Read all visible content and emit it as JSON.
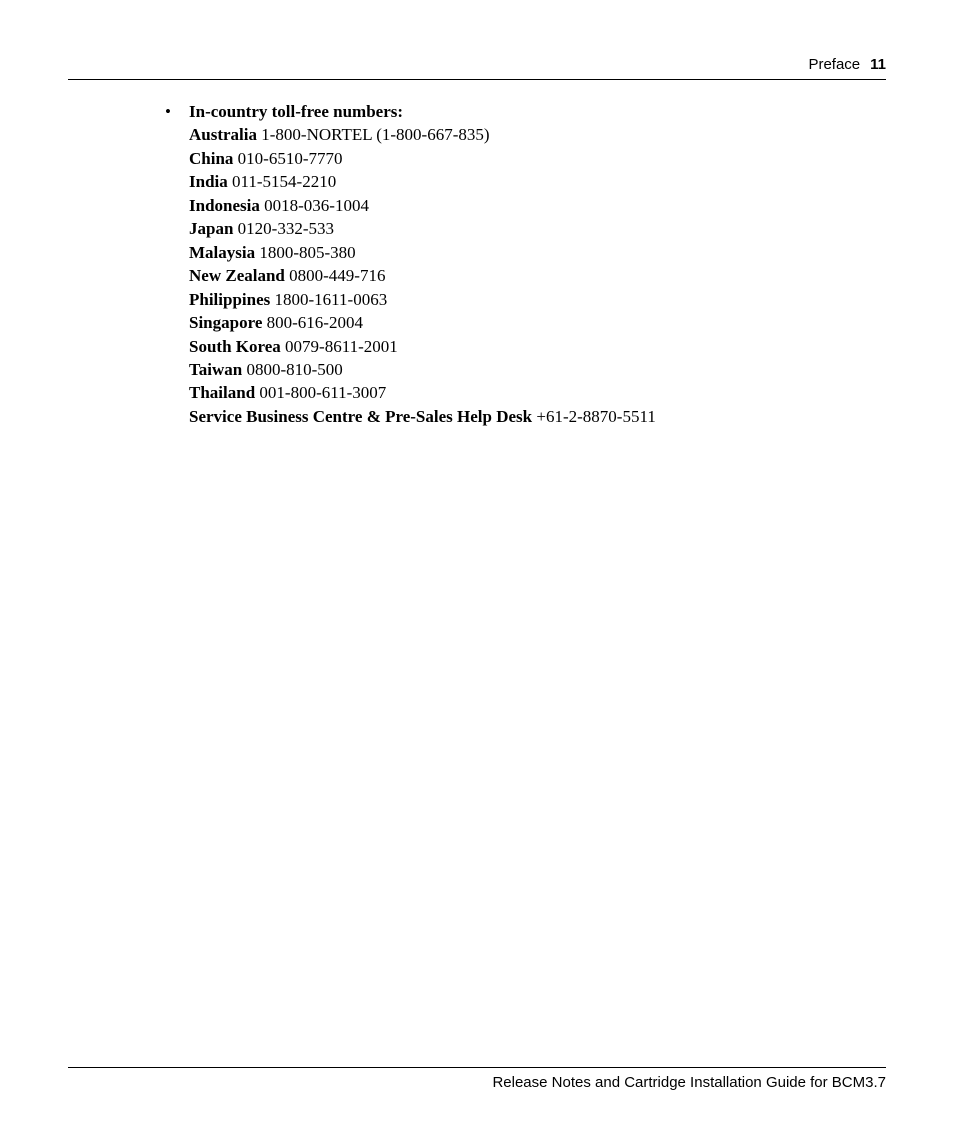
{
  "header": {
    "section_label": "Preface",
    "page_number": "11"
  },
  "bullet_glyph": "•",
  "section": {
    "title": "In-country toll-free numbers:",
    "entries": [
      {
        "label": "Australia",
        "value": "1-800-NORTEL (1-800-667-835)"
      },
      {
        "label": "China",
        "value": "010-6510-7770"
      },
      {
        "label": "India",
        "value": "011-5154-2210"
      },
      {
        "label": "Indonesia",
        "value": "0018-036-1004"
      },
      {
        "label": "Japan",
        "value": "0120-332-533"
      },
      {
        "label": "Malaysia",
        "value": "1800-805-380"
      },
      {
        "label": "New Zealand",
        "value": "0800-449-716"
      },
      {
        "label": "Philippines",
        "value": "1800-1611-0063"
      },
      {
        "label": "Singapore",
        "value": "800-616-2004"
      },
      {
        "label": "South Korea",
        "value": "0079-8611-2001"
      },
      {
        "label": "Taiwan",
        "value": "0800-810-500"
      },
      {
        "label": "Thailand",
        "value": "001-800-611-3007"
      },
      {
        "label": "Service Business Centre & Pre-Sales Help Desk",
        "value": "+61-2-8870-5511"
      }
    ]
  },
  "footer": {
    "text": "Release Notes and Cartridge Installation Guide for BCM3.7"
  }
}
